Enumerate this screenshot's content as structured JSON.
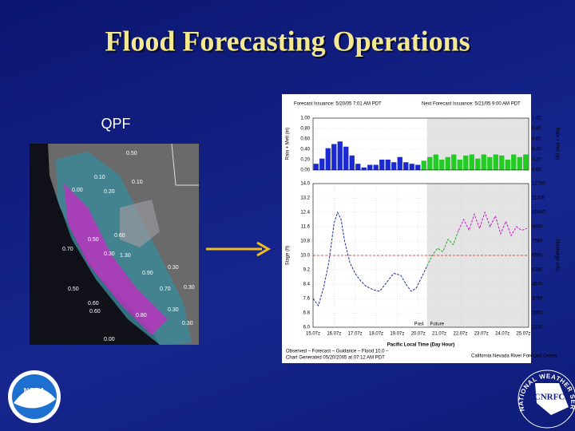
{
  "title": "Flood Forecasting Operations",
  "qpf_label": "QPF",
  "map_labels": [
    "0.50",
    "0.10",
    "0.10",
    "0.00",
    "0.20",
    "0.60",
    "0.50",
    "0.70",
    "0.30",
    "1.30",
    "0.30",
    "0.90",
    "0.70",
    "0.30",
    "0.50",
    "0.60",
    "0.60",
    "0.30",
    "0.80",
    "0.30",
    "0.00"
  ],
  "hydrograph": {
    "issuance": "Forecast Issuance: 5/20/05 7:01 AM PDT",
    "next_issuance": "Next Forecast Issuance: 5/21/05 9:00 AM PDT",
    "rain_axis_label": "Rain + Melt (in)",
    "rain_ylim": [
      0,
      1
    ],
    "rain_ticks": [
      {
        "value": 0,
        "label": "0.00"
      },
      {
        "value": 0.2,
        "label": "0.20"
      },
      {
        "value": 0.4,
        "label": "0.40"
      },
      {
        "value": 0.6,
        "label": "0.60"
      },
      {
        "value": 0.8,
        "label": "0.80"
      },
      {
        "value": 1,
        "label": "1.00"
      }
    ],
    "rain_observed": {
      "color": "#1a2ad0",
      "values": [
        0.12,
        0.22,
        0.42,
        0.5,
        0.55,
        0.45,
        0.28,
        0.12,
        0.05,
        0.1,
        0.1,
        0.2,
        0.2,
        0.15,
        0.25,
        0.15,
        0.12,
        0.1
      ]
    },
    "rain_forecast": {
      "color": "#22cc22",
      "values": [
        0.18,
        0.25,
        0.3,
        0.2,
        0.25,
        0.3,
        0.2,
        0.28,
        0.3,
        0.22,
        0.3,
        0.25,
        0.3,
        0.28,
        0.2,
        0.3,
        0.25,
        0.3
      ]
    },
    "stage_axis_label": "Stage (ft)",
    "discharge_axis_label": "Discharge (cfs)",
    "stage_ylim": [
      6,
      14
    ],
    "stage_ticks": [
      {
        "value": 6,
        "label": "6.0"
      },
      {
        "value": 6.8,
        "label": "6.8"
      },
      {
        "value": 7.6,
        "label": "7.6"
      },
      {
        "value": 8.4,
        "label": "8.4"
      },
      {
        "value": 9.2,
        "label": "9.2"
      },
      {
        "value": 10,
        "label": "10.0"
      },
      {
        "value": 10.8,
        "label": "10.8"
      },
      {
        "value": 11.6,
        "label": "11.6"
      },
      {
        "value": 12.4,
        "label": "12.4"
      },
      {
        "value": 13.2,
        "label": "13.2"
      },
      {
        "value": 14,
        "label": "14.0"
      }
    ],
    "discharge_labels": [
      "2220",
      "2950",
      "3760",
      "4570",
      "5280",
      "6560",
      "7560",
      "8800",
      "10040",
      "11320",
      "12700"
    ],
    "flood_stage": 10,
    "xlim": [
      0,
      246
    ],
    "xticks": [
      {
        "value": 0,
        "label": "15.07z"
      },
      {
        "value": 24,
        "label": "16.07z"
      },
      {
        "value": 48,
        "label": "17.07z"
      },
      {
        "value": 72,
        "label": "18.07z"
      },
      {
        "value": 96,
        "label": "19.07z"
      },
      {
        "value": 120,
        "label": "20.07z"
      },
      {
        "value": 144,
        "label": "21.07z"
      },
      {
        "value": 168,
        "label": "22.07z"
      },
      {
        "value": 192,
        "label": "23.07z"
      },
      {
        "value": 216,
        "label": "24.07z"
      },
      {
        "value": 240,
        "label": "25.07z"
      }
    ],
    "forecast_start": 130,
    "x_axis_label": "Pacific Local Time (Day Hour)",
    "past_label": "Past",
    "future_label": "Future",
    "series": [
      {
        "name": "Observed",
        "color": "#2030a0",
        "x": [
          0,
          6,
          12,
          18,
          24,
          28,
          32,
          36,
          42,
          48,
          54,
          60,
          68,
          76,
          84,
          92,
          100,
          106,
          112,
          118,
          124,
          130
        ],
        "values": [
          7.6,
          7.2,
          8.2,
          9.6,
          11.8,
          12.4,
          12.0,
          10.8,
          9.6,
          9.0,
          8.6,
          8.3,
          8.1,
          8.0,
          8.5,
          9.0,
          8.9,
          8.4,
          8.0,
          8.2,
          8.8,
          9.4
        ]
      },
      {
        "name": "Forecast",
        "color": "#20b020",
        "x": [
          130,
          136,
          142,
          148,
          154,
          160,
          166
        ],
        "values": [
          9.4,
          10.0,
          10.4,
          10.2,
          10.9,
          10.6,
          11.4
        ]
      },
      {
        "name": "Guidance",
        "color": "#c020c0",
        "x": [
          166,
          172,
          178,
          184,
          190,
          196,
          202,
          208,
          214,
          220,
          226,
          232,
          238,
          244
        ],
        "values": [
          11.4,
          12.0,
          11.4,
          12.3,
          11.5,
          12.4,
          11.6,
          12.2,
          11.2,
          11.9,
          11.1,
          11.6,
          11.4,
          11.5
        ]
      }
    ],
    "legend_text": "Observed – Forecast – Guidance – Flood 10.0 –",
    "generated": "Chart Generated 05/20/2005 at 07:12 AM PDT",
    "credit": "California Nevada River Forecast Center"
  },
  "cnrfc": "CNRFC",
  "nws": "NATIONAL WEATHER SERVICE",
  "noaa": "NOAA"
}
